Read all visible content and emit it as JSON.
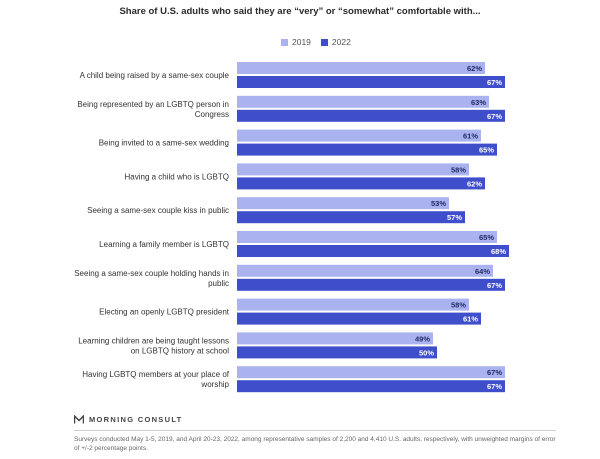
{
  "chart_data": {
    "type": "bar",
    "orientation": "horizontal",
    "title": "Share of U.S. adults who said they are “very” or “somewhat” comfortable with...",
    "categories": [
      [
        "A child being raised by a same-sex couple"
      ],
      [
        "Being represented by an LGBTQ person in",
        "Congress"
      ],
      [
        "Being invited to a same-sex wedding"
      ],
      [
        "Having a child who is LGBTQ"
      ],
      [
        "Seeing a same-sex couple kiss in public"
      ],
      [
        "Learning a family member is LGBTQ"
      ],
      [
        "Seeing a same-sex couple holding hands in",
        "public"
      ],
      [
        "Electing an openly LGBTQ president"
      ],
      [
        "Learning children are being taught lessons",
        "on LGBTQ history at school"
      ],
      [
        "Having LGBTQ members at your place of",
        "worship"
      ]
    ],
    "series": [
      {
        "name": "2019",
        "color": "#aab3ef",
        "values": [
          62,
          63,
          61,
          58,
          53,
          65,
          64,
          58,
          49,
          67
        ]
      },
      {
        "name": "2022",
        "color": "#3f4fcc",
        "values": [
          67,
          67,
          65,
          62,
          57,
          68,
          67,
          61,
          50,
          67
        ]
      }
    ],
    "value_suffix": "%",
    "xlim": [
      0,
      70
    ],
    "legend_position": "top",
    "grid": false
  },
  "brand": {
    "name": "MORNING CONSULT"
  },
  "footnote": "Surveys conducted May 1-5, 2019, and April 20-23, 2022, among representative samples of 2,200 and 4,410 U.S. adults, respectively, with unweighted margins of error of +/-2 percentage points."
}
